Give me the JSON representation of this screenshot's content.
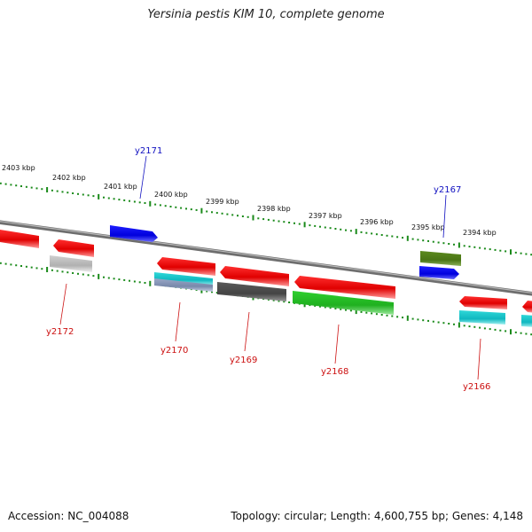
{
  "title": "Yersinia pestis KIM 10, complete genome",
  "footer": {
    "accession": "Accession: NC_004088",
    "summary": "Topology: circular; Length: 4,600,755 bp; Genes: 4,148"
  },
  "colors": {
    "backbone": "#888888",
    "tick": "#1a8a1a",
    "forward_label": "#1010c0",
    "reverse_label": "#cc1010"
  },
  "kbp_labels": [
    "2403 kbp",
    "2402 kbp",
    "2401 kbp",
    "2400 kbp",
    "2399 kbp",
    "2398 kbp",
    "2397 kbp",
    "2396 kbp",
    "2395 kbp",
    "2394 kbp"
  ],
  "gene_labels": [
    {
      "name": "y2171",
      "strand": "forward"
    },
    {
      "name": "y2167",
      "strand": "forward"
    },
    {
      "name": "y2172",
      "strand": "reverse"
    },
    {
      "name": "y2170",
      "strand": "reverse"
    },
    {
      "name": "y2169",
      "strand": "reverse"
    },
    {
      "name": "y2168",
      "strand": "reverse"
    },
    {
      "name": "y2166",
      "strand": "reverse"
    }
  ]
}
